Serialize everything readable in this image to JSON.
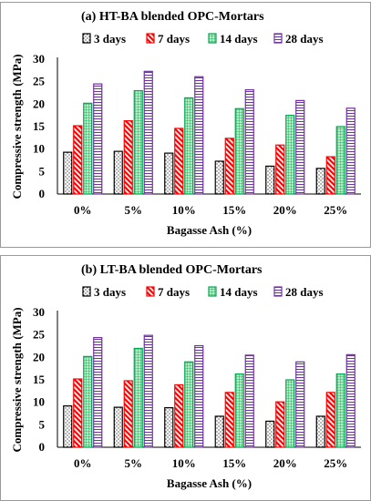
{
  "chart_data": [
    {
      "type": "bar",
      "title": "(a)   HT-BA blended OPC-Mortars",
      "xlabel": "Bagasse Ash (%)",
      "ylabel": "Compressive strength (MPa)",
      "categories": [
        "0%",
        "5%",
        "10%",
        "15%",
        "20%",
        "25%"
      ],
      "ylim": [
        0,
        30
      ],
      "yticks": [
        "0",
        "5",
        "10",
        "15",
        "20",
        "25",
        "30"
      ],
      "legend_position": "top",
      "series": [
        {
          "name": "3 days",
          "values": [
            9.3,
            9.5,
            9.1,
            7.3,
            6.2,
            5.7
          ],
          "color": "#000000",
          "pattern": "dots"
        },
        {
          "name": "7 days",
          "values": [
            15.2,
            16.3,
            14.6,
            12.4,
            10.9,
            8.3
          ],
          "color": "#ff0000",
          "pattern": "diagonal"
        },
        {
          "name": "14 days",
          "values": [
            20.2,
            23.0,
            21.4,
            19.0,
            17.5,
            15.0
          ],
          "color": "#00a651",
          "pattern": "grid"
        },
        {
          "name": "28 days",
          "values": [
            24.5,
            27.3,
            26.1,
            23.2,
            20.8,
            19.1
          ],
          "color": "#7030a0",
          "pattern": "horizontal"
        }
      ]
    },
    {
      "type": "bar",
      "title": "(b)   LT-BA blended OPC-Mortars",
      "xlabel": "Bagasse Ash (%)",
      "ylabel": "Compressive strength (MPa)",
      "categories": [
        "0%",
        "5%",
        "10%",
        "15%",
        "20%",
        "25%"
      ],
      "ylim": [
        0,
        30
      ],
      "yticks": [
        "0",
        "5",
        "10",
        "15",
        "20",
        "25",
        "30"
      ],
      "legend_position": "top",
      "series": [
        {
          "name": "3 days",
          "values": [
            9.2,
            8.9,
            8.8,
            6.9,
            5.8,
            6.9
          ],
          "color": "#000000",
          "pattern": "dots"
        },
        {
          "name": "7 days",
          "values": [
            15.2,
            14.8,
            13.9,
            12.2,
            10.1,
            12.2
          ],
          "color": "#ff0000",
          "pattern": "diagonal"
        },
        {
          "name": "14 days",
          "values": [
            20.2,
            22.0,
            19.0,
            16.3,
            15.0,
            16.3
          ],
          "color": "#00a651",
          "pattern": "grid"
        },
        {
          "name": "28 days",
          "values": [
            24.4,
            24.9,
            22.6,
            20.5,
            19.0,
            20.6
          ],
          "color": "#7030a0",
          "pattern": "horizontal"
        }
      ]
    }
  ]
}
